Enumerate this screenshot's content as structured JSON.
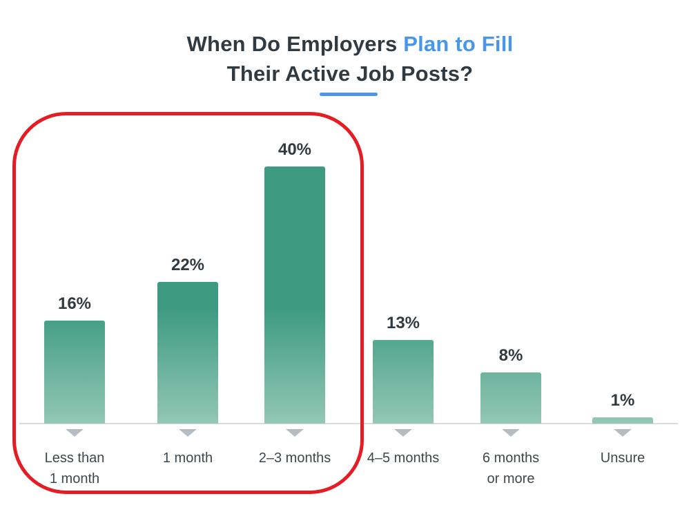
{
  "title": {
    "part1": "When Do Employers ",
    "highlight": "Plan to Fill",
    "line2": "Their Active Job Posts?"
  },
  "colors": {
    "accent_blue": "#4a96e8",
    "text_dark": "#323a41",
    "text_category": "#3f474c",
    "bar_top": "#3e9b82",
    "bar_bottom": "#93c7b4",
    "axis_gray": "#d8dbdd",
    "marker_gray": "#b5bdc3",
    "annotation_red": "#e51c23"
  },
  "chart_data": {
    "type": "bar",
    "title": "When Do Employers Plan to Fill Their Active Job Posts?",
    "categories": [
      "Less than 1 month",
      "1 month",
      "2–3 months",
      "4–5 months",
      "6 months or more",
      "Unsure"
    ],
    "values": [
      16,
      22,
      40,
      13,
      8,
      1
    ],
    "value_labels": [
      "16%",
      "22%",
      "40%",
      "13%",
      "8%",
      "1%"
    ],
    "categories_lines": [
      [
        "Less than",
        "1 month"
      ],
      [
        "1 month"
      ],
      [
        "2–3 months"
      ],
      [
        "4–5 months"
      ],
      [
        "6 months",
        "or more"
      ],
      [
        "Unsure"
      ]
    ],
    "xlabel": "",
    "ylabel": "",
    "ylim": [
      0,
      43
    ],
    "grid": false,
    "legend": false,
    "annotation": {
      "shape": "red-rounded-rectangle",
      "around_categories": [
        "Less than 1 month",
        "1 month",
        "2–3 months"
      ]
    }
  }
}
